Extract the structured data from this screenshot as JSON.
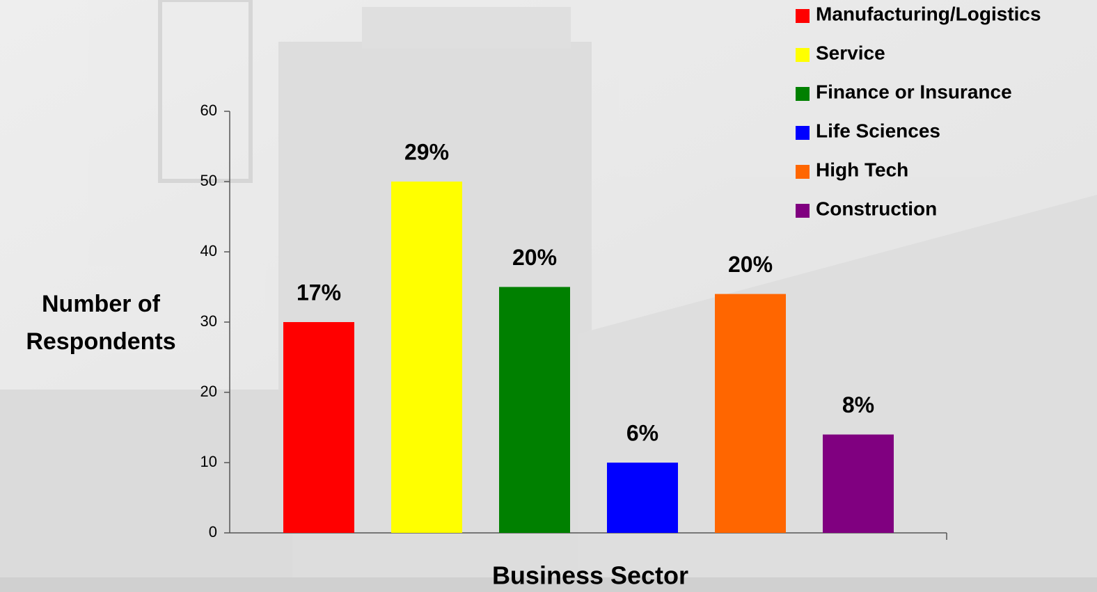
{
  "chart_data": {
    "type": "bar",
    "xlabel": "Business Sector",
    "ylabel": "Number of Respondents",
    "categories": [
      "Manufacturing/Logistics",
      "Service",
      "Finance or Insurance",
      "Life Sciences",
      "High Tech",
      "Construction"
    ],
    "values": [
      30,
      50,
      35,
      10,
      34,
      14
    ],
    "annotations": [
      "17%",
      "29%",
      "20%",
      "6%",
      "20%",
      "8%"
    ],
    "colors": [
      "#ff0000",
      "#ffff00",
      "#008000",
      "#0000ff",
      "#ff6600",
      "#800080"
    ],
    "ylim": [
      0,
      60
    ],
    "yticks": [
      0,
      10,
      20,
      30,
      40,
      50,
      60
    ],
    "legend": "top-right"
  }
}
